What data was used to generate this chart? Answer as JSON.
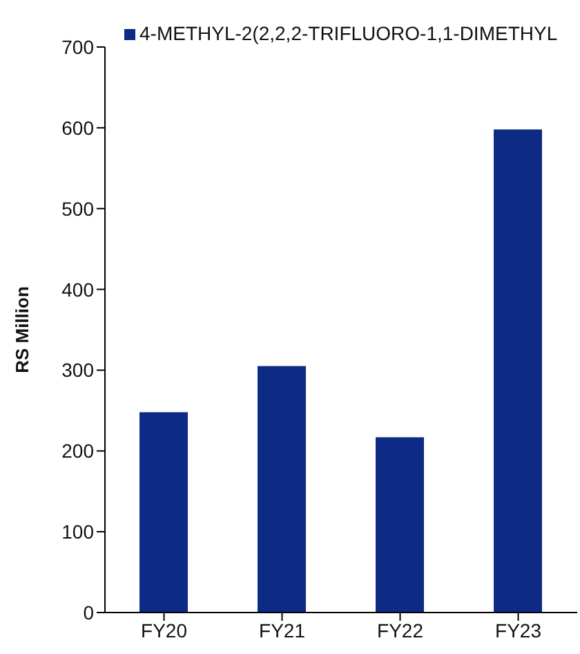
{
  "chart_data": {
    "type": "bar",
    "ylabel": "RS Million",
    "categories": [
      "FY20",
      "FY21",
      "FY22",
      "FY23"
    ],
    "series": [
      {
        "name": "4-METHYL-2(2,2,2-TRIFLUORO-1,1-DIMETHYL",
        "color": "#0d2a84",
        "values": [
          248,
          305,
          217,
          598
        ]
      }
    ],
    "ylim": [
      0,
      700
    ],
    "yticks": [
      0,
      100,
      200,
      300,
      400,
      500,
      600,
      700
    ],
    "grid": false,
    "legend": "top left"
  }
}
